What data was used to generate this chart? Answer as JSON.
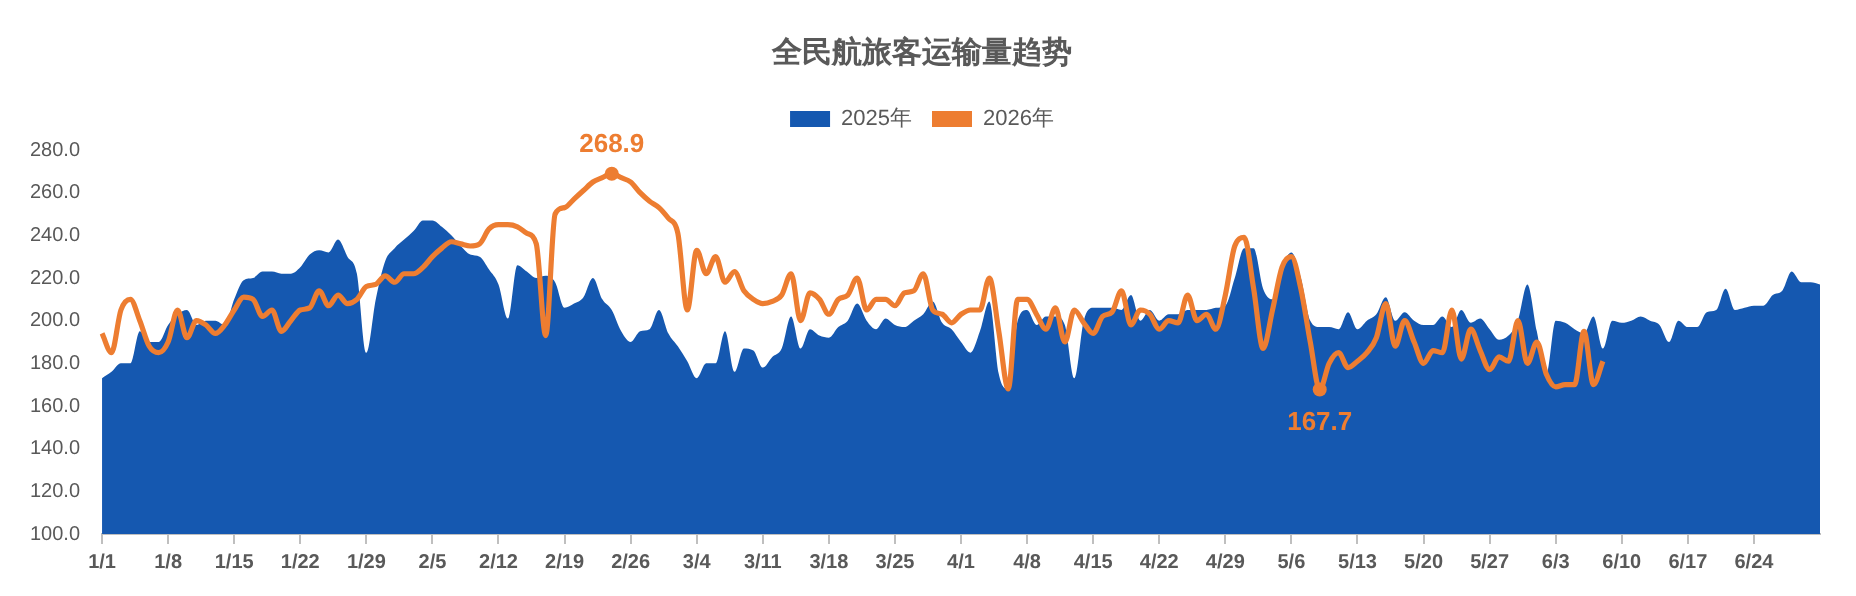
{
  "chart_data": {
    "type": "area",
    "title": "全民航旅客运输量趋势",
    "legend": "top",
    "categories": [
      "1/1",
      null,
      null,
      null,
      null,
      null,
      null,
      "1/8",
      null,
      null,
      null,
      null,
      null,
      null,
      "1/15",
      null,
      null,
      null,
      null,
      null,
      null,
      "1/22",
      null,
      null,
      null,
      null,
      null,
      null,
      "1/29",
      null,
      null,
      null,
      null,
      null,
      null,
      "2/5",
      null,
      null,
      null,
      null,
      null,
      null,
      "2/12",
      null,
      null,
      null,
      null,
      null,
      null,
      "2/19",
      null,
      null,
      null,
      null,
      null,
      null,
      "2/26",
      null,
      null,
      null,
      null,
      null,
      null,
      "3/4",
      null,
      null,
      null,
      null,
      null,
      null,
      "3/11",
      null,
      null,
      null,
      null,
      null,
      null,
      "3/18",
      null,
      null,
      null,
      null,
      null,
      null,
      "3/25",
      null,
      null,
      null,
      null,
      null,
      null,
      "4/1",
      null,
      null,
      null,
      null,
      null,
      null,
      "4/8",
      null,
      null,
      null,
      null,
      null,
      null,
      "4/15",
      null,
      null,
      null,
      null,
      null,
      null,
      "4/22",
      null,
      null,
      null,
      null,
      null,
      null,
      "4/29",
      null,
      null,
      null,
      null,
      null,
      null,
      "5/6",
      null,
      null,
      null,
      null,
      null,
      null,
      "5/13",
      null,
      null,
      null,
      null,
      null,
      null,
      "5/20",
      null,
      null,
      null,
      null,
      null,
      null,
      "5/27",
      null,
      null,
      null,
      null,
      null,
      null,
      "6/3",
      null,
      null,
      null,
      null,
      null,
      null,
      "6/10",
      null,
      null,
      null,
      null,
      null,
      null,
      "6/17",
      null,
      null,
      null,
      null,
      null,
      null,
      "6/24",
      null,
      null,
      null,
      null,
      null,
      null,
      null
    ],
    "ylim": [
      100,
      280
    ],
    "yticks": [
      {
        "value": 100,
        "label": "100.0"
      },
      {
        "value": 120,
        "label": "120.0"
      },
      {
        "value": 140,
        "label": "140.0"
      },
      {
        "value": 160,
        "label": "160.0"
      },
      {
        "value": 180,
        "label": "180.0"
      },
      {
        "value": 200,
        "label": "200.0"
      },
      {
        "value": 220,
        "label": "220.0"
      },
      {
        "value": 240,
        "label": "240.0"
      },
      {
        "value": 260,
        "label": "260.0"
      },
      {
        "value": 280,
        "label": "280.0"
      }
    ],
    "series": [
      {
        "name": "2025年",
        "type": "area",
        "color": "#1558b0",
        "values": [
          173,
          176,
          180,
          180,
          195,
          190,
          190,
          198,
          203,
          205,
          198,
          200,
          200,
          198,
          210,
          219,
          220,
          223,
          223,
          222,
          222,
          225,
          231,
          233,
          232,
          238,
          230,
          222,
          185,
          210,
          228,
          234,
          238,
          242,
          247,
          247,
          244,
          240,
          235,
          231,
          230,
          224,
          217,
          201,
          226,
          223,
          220,
          221,
          218,
          206,
          208,
          211,
          220,
          210,
          205,
          195,
          190,
          195,
          196,
          205,
          194,
          188,
          181,
          173,
          180,
          180,
          195,
          176,
          187,
          186,
          178,
          183,
          187,
          202,
          187,
          196,
          193,
          192,
          197,
          200,
          208,
          200,
          196,
          201,
          198,
          197,
          200,
          203,
          209,
          199,
          196,
          190,
          185,
          195,
          209,
          175,
          168,
          200,
          205,
          198,
          202,
          202,
          198,
          173,
          200,
          206,
          206,
          206,
          205,
          212,
          200,
          205,
          200,
          203,
          203,
          205,
          205,
          205,
          206,
          207,
          220,
          234,
          234,
          215,
          210,
          225,
          232,
          220,
          200,
          197,
          197,
          196,
          204,
          196,
          200,
          203,
          211,
          200,
          204,
          200,
          198,
          198,
          202,
          197,
          205,
          199,
          201,
          196,
          191,
          193,
          200,
          217,
          195,
          175,
          200,
          199,
          196,
          194,
          202,
          187,
          200,
          199,
          200,
          202,
          200,
          198,
          190,
          200,
          197,
          197,
          204,
          205,
          215,
          205,
          206,
          207,
          207,
          212,
          214,
          223,
          218,
          218,
          217
        ]
      },
      {
        "name": "2026年",
        "type": "line",
        "color": "#ed7d31",
        "values": [
          194,
          185,
          205,
          210,
          200,
          188,
          185,
          190,
          205,
          192,
          200,
          198,
          194,
          198,
          205,
          211,
          210,
          202,
          205,
          195,
          200,
          205,
          206,
          214,
          207,
          212,
          208,
          210,
          216,
          217,
          221,
          218,
          222,
          222,
          225,
          230,
          234,
          237,
          236,
          235,
          236,
          243,
          245,
          245,
          244,
          241,
          236,
          193,
          250,
          253,
          257,
          261,
          265,
          267,
          268.9,
          267,
          265,
          260,
          256,
          253,
          248,
          241,
          205,
          233,
          222,
          230,
          218,
          223,
          214,
          210,
          208,
          209,
          212,
          222,
          200,
          213,
          210,
          203,
          210,
          212,
          220,
          205,
          210,
          210,
          207,
          213,
          214,
          222,
          205,
          203,
          199,
          203,
          205,
          205,
          220,
          195,
          168,
          210,
          210,
          203,
          196,
          206,
          190,
          205,
          199,
          194,
          202,
          204,
          214,
          198,
          205,
          203,
          196,
          200,
          199,
          212,
          200,
          203,
          196,
          212,
          235,
          239,
          215,
          187,
          205,
          225,
          230,
          215,
          190,
          167.7,
          180,
          185,
          178,
          181,
          185,
          192,
          208,
          188,
          200,
          190,
          180,
          186,
          185,
          205,
          182,
          196,
          186,
          177,
          183,
          181,
          200,
          180,
          190,
          175,
          169,
          170,
          170,
          195,
          170,
          181,
          null,
          null,
          null,
          null,
          null,
          null,
          null,
          null,
          null,
          null,
          null,
          null,
          null,
          null,
          null,
          null,
          null,
          null,
          null,
          null,
          null,
          null,
          null
        ],
        "value_labels": [
          null,
          null,
          null,
          null,
          null,
          null,
          null,
          null,
          null,
          null,
          null,
          null,
          null,
          null,
          null,
          null,
          null,
          null,
          null,
          null,
          null,
          null,
          null,
          null,
          null,
          null,
          null,
          null,
          null,
          null,
          null,
          null,
          null,
          null,
          null,
          null,
          null,
          null,
          null,
          null,
          null,
          null,
          null,
          null,
          null,
          null,
          null,
          null,
          null,
          null,
          null,
          null,
          null,
          null,
          "268.9",
          null,
          null,
          null,
          null,
          null,
          null,
          null,
          null,
          null,
          null,
          null,
          null,
          null,
          null,
          null,
          null,
          null,
          null,
          null,
          null,
          null,
          null,
          null,
          null,
          null,
          null,
          null,
          null,
          null,
          null,
          null,
          null,
          null,
          null,
          null,
          null,
          null,
          null,
          null,
          null,
          null,
          null,
          null,
          null,
          null,
          null,
          null,
          null,
          null,
          null,
          null,
          null,
          null,
          null,
          null,
          null,
          null,
          null,
          null,
          null,
          null,
          null,
          null,
          null,
          null,
          null,
          null,
          null,
          null,
          null,
          null,
          null,
          null,
          null,
          "167.7",
          null,
          null,
          null,
          null,
          null,
          null,
          null,
          null,
          null,
          null,
          null,
          null,
          null,
          null,
          null,
          null,
          null,
          null,
          null,
          null,
          null,
          null,
          null,
          null,
          null,
          null,
          null,
          null,
          null,
          null,
          null,
          null,
          null,
          null,
          null,
          null,
          null,
          null,
          null,
          null,
          null,
          null,
          null,
          null,
          null,
          null,
          null,
          null,
          null,
          null,
          null,
          null,
          null
        ]
      }
    ]
  }
}
